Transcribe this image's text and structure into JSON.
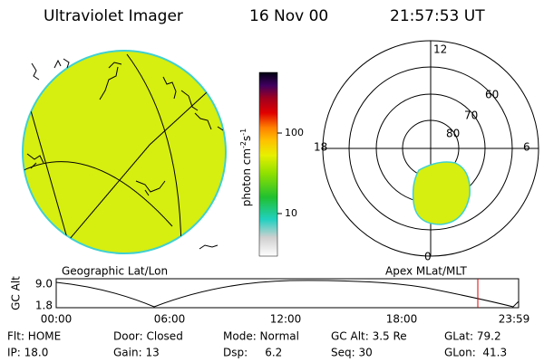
{
  "header": {
    "title": "Ultraviolet Imager",
    "date": "16 Nov 00",
    "time": "21:57:53 UT"
  },
  "geo_map": {
    "caption": "Geographic Lat/Lon"
  },
  "colorbar": {
    "ticks": [
      "100",
      "10"
    ],
    "label": {
      "text": "photon cm",
      "exp1": "-2",
      "unit2": "s",
      "exp2": "-1"
    }
  },
  "polar_map": {
    "caption": "Apex MLat/MLT",
    "mlt_labels": [
      "12",
      "18",
      "6",
      "0"
    ],
    "lat_labels": [
      "60",
      "70",
      "80"
    ]
  },
  "timeline": {
    "axis_label": "GC Alt",
    "y_labels": [
      "9.0",
      "1.8"
    ],
    "x_labels": [
      "00:00",
      "06:00",
      "12:00",
      "18:00",
      "23:59"
    ]
  },
  "footer": {
    "rows": [
      [
        "Flt: HOME",
        "Door: Closed",
        "Mode: Normal",
        "GC Alt: 3.5 Re",
        "GLat: 79.2"
      ],
      [
        "IP: 18.0",
        "Gain: 13",
        "Dsp:     6.2",
        "Seq: 30",
        "GLon:  41.3"
      ]
    ]
  }
}
